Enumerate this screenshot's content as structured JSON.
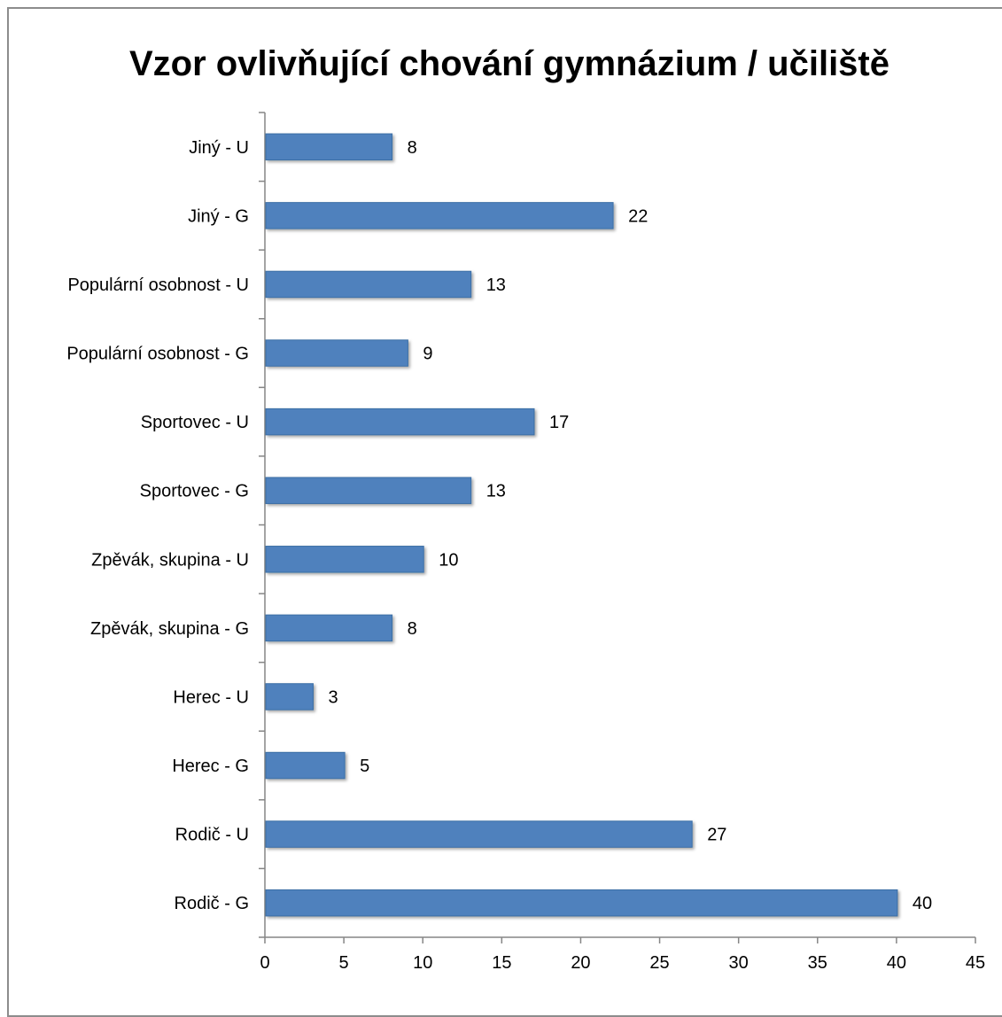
{
  "chart_data": {
    "type": "bar",
    "orientation": "horizontal",
    "title": "Vzor ovlivňující chování gymnázium / učiliště",
    "xlabel": "",
    "ylabel": "",
    "categories": [
      "Jiný - U",
      "Jiný - G",
      "Populární osobnost - U",
      "Populární osobnost - G",
      "Sportovec - U",
      "Sportovec - G",
      "Zpěvák, skupina - U",
      "Zpěvák, skupina - G",
      "Herec - U",
      "Herec - G",
      "Rodič - U",
      "Rodič - G"
    ],
    "values": [
      8,
      22,
      13,
      9,
      17,
      13,
      10,
      8,
      3,
      5,
      27,
      40
    ],
    "data_labels": [
      "8",
      "22",
      "13",
      "9",
      "17",
      "13",
      "10",
      "8",
      "3",
      "5",
      "27",
      "40"
    ],
    "xlim": [
      0,
      45
    ],
    "xticks": [
      "0",
      "5",
      "10",
      "15",
      "20",
      "25",
      "30",
      "35",
      "40",
      "45"
    ],
    "grid": false,
    "legend": "none",
    "bar_color": "#4f81bd",
    "bar_edge_color": "#3a6ea5"
  }
}
